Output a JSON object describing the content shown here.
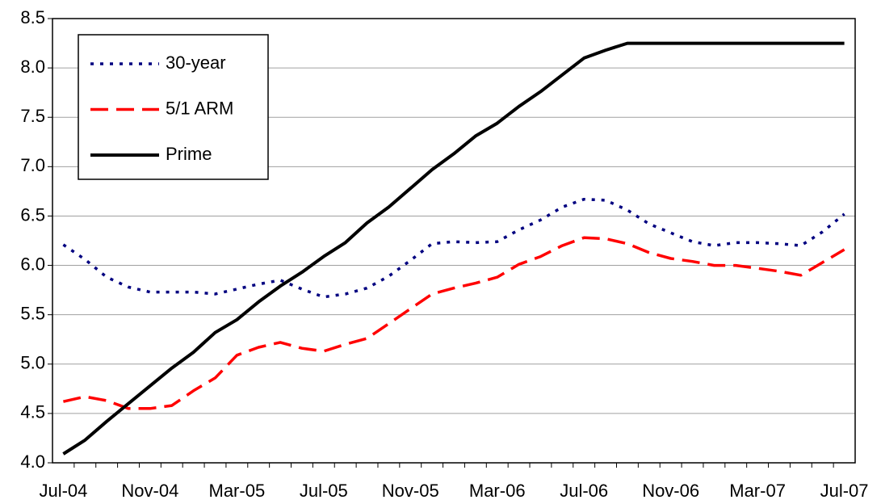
{
  "chart_data": {
    "type": "line",
    "categories": [
      "Jul-04",
      null,
      null,
      null,
      "Nov-04",
      null,
      null,
      null,
      "Mar-05",
      null,
      null,
      null,
      "Jul-05",
      null,
      null,
      null,
      "Nov-05",
      null,
      null,
      null,
      "Mar-06",
      null,
      null,
      null,
      "Jul-06",
      null,
      null,
      null,
      "Nov-06",
      null,
      null,
      null,
      "Mar-07",
      null,
      null,
      null,
      "Jul-07"
    ],
    "series": [
      {
        "name": "30-year",
        "color": "#000080",
        "dash": "dotted",
        "values": [
          6.21,
          6.06,
          5.88,
          5.78,
          5.73,
          5.73,
          5.73,
          5.71,
          5.76,
          5.81,
          5.85,
          5.76,
          5.68,
          5.71,
          5.77,
          5.89,
          6.05,
          6.22,
          6.24,
          6.23,
          6.24,
          6.36,
          6.46,
          6.59,
          6.67,
          6.66,
          6.56,
          6.42,
          6.33,
          6.24,
          6.2,
          6.23,
          6.23,
          6.22,
          6.2,
          6.34,
          6.52
        ]
      },
      {
        "name": "5/1 ARM",
        "color": "#ff0000",
        "dash": "dashed",
        "values": [
          4.62,
          4.67,
          4.63,
          4.55,
          4.55,
          4.58,
          4.73,
          4.86,
          5.09,
          5.17,
          5.22,
          5.16,
          5.13,
          5.2,
          5.26,
          5.41,
          5.56,
          5.71,
          5.77,
          5.82,
          5.88,
          6.01,
          6.09,
          6.2,
          6.28,
          6.27,
          6.22,
          6.13,
          6.07,
          6.04,
          6.0,
          6.0,
          5.97,
          5.94,
          5.9,
          6.03,
          6.16
        ]
      },
      {
        "name": "Prime",
        "color": "#000000",
        "dash": "solid",
        "values": [
          4.09,
          4.23,
          4.42,
          4.6,
          4.78,
          4.96,
          5.12,
          5.32,
          5.45,
          5.63,
          5.79,
          5.93,
          6.09,
          6.23,
          6.43,
          6.59,
          6.78,
          6.97,
          7.13,
          7.31,
          7.44,
          7.61,
          7.76,
          7.93,
          8.1,
          8.18,
          8.25,
          8.25,
          8.25,
          8.25,
          8.25,
          8.25,
          8.25,
          8.25,
          8.25,
          8.25,
          8.25
        ]
      }
    ],
    "ylim": [
      4,
      8.5
    ],
    "yticks": [
      {
        "value": 4,
        "label": "4.0"
      },
      4.5,
      {
        "value": 5,
        "label": "5.0"
      },
      5.5,
      {
        "value": 6,
        "label": "6.0"
      },
      6.5,
      {
        "value": 7,
        "label": "7.0"
      },
      7.5,
      {
        "value": 8,
        "label": "8.0"
      },
      8.5
    ],
    "grid": true,
    "legend": "top-left"
  }
}
